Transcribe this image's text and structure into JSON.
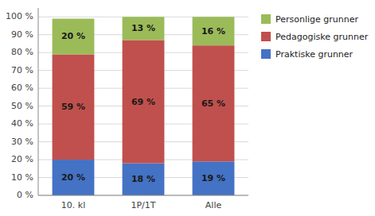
{
  "chart_data": {
    "type": "bar",
    "stacked": true,
    "categories": [
      "10. kl",
      "1P/1T",
      "Alle"
    ],
    "series": [
      {
        "name": "Praktiske grunner",
        "color": "#4472C4",
        "values": [
          20,
          18,
          19
        ],
        "value_labels": [
          "20 %",
          "18 %",
          "19 %"
        ]
      },
      {
        "name": "Pedagogiske grunner",
        "color": "#C0504D",
        "values": [
          59,
          69,
          65
        ],
        "value_labels": [
          "59 %",
          "69 %",
          "65 %"
        ]
      },
      {
        "name": "Personlige grunner",
        "color": "#9BBB59",
        "values": [
          20,
          13,
          16
        ],
        "value_labels": [
          "20 %",
          "13 %",
          "16 %"
        ]
      }
    ],
    "ylim": [
      0,
      105
    ],
    "yticks": [
      {
        "value": 0,
        "label": "0 %"
      },
      {
        "value": 10,
        "label": "10 %"
      },
      {
        "value": 20,
        "label": "20 %"
      },
      {
        "value": 30,
        "label": "30 %"
      },
      {
        "value": 40,
        "label": "40 %"
      },
      {
        "value": 50,
        "label": "50 %"
      },
      {
        "value": 60,
        "label": "60 %"
      },
      {
        "value": 70,
        "label": "70 %"
      },
      {
        "value": 80,
        "label": "80 %"
      },
      {
        "value": 90,
        "label": "90 %"
      },
      {
        "value": 100,
        "label": "100 %"
      }
    ],
    "grid": true,
    "data_labels": true,
    "legend": "right"
  }
}
